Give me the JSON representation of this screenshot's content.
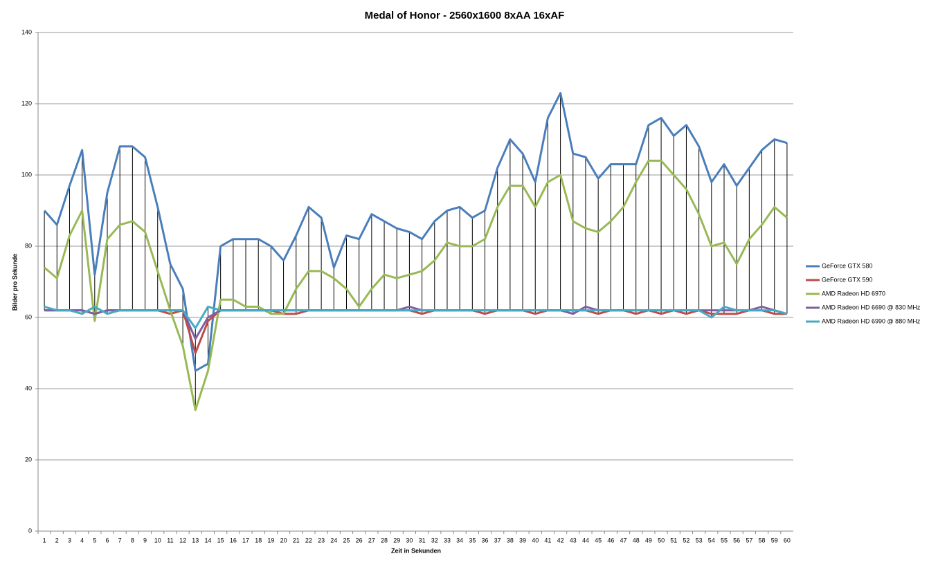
{
  "chart_data": {
    "type": "line",
    "title": "Medal of Honor - 2560x1600 8xAA 16xAF",
    "x_label": "Zeit in Sekunden",
    "y_label": "Bilder pro Sekunde",
    "categories": [
      "1",
      "2",
      "3",
      "4",
      "5",
      "6",
      "7",
      "8",
      "9",
      "10",
      "11",
      "12",
      "13",
      "14",
      "15",
      "16",
      "17",
      "18",
      "19",
      "20",
      "21",
      "22",
      "23",
      "24",
      "25",
      "26",
      "27",
      "28",
      "29",
      "30",
      "31",
      "32",
      "33",
      "34",
      "35",
      "36",
      "37",
      "38",
      "39",
      "40",
      "41",
      "42",
      "43",
      "44",
      "45",
      "46",
      "47",
      "48",
      "49",
      "50",
      "51",
      "52",
      "53",
      "54",
      "55",
      "56",
      "57",
      "58",
      "59",
      "60"
    ],
    "ylim": [
      0,
      140
    ],
    "yticks": [
      0,
      20,
      40,
      60,
      80,
      100,
      120,
      140
    ],
    "grid": true,
    "drop_lines": true,
    "legend": "right",
    "series": [
      {
        "name": "GeForce GTX 580",
        "color": "#4a7ebb",
        "values": [
          90,
          86,
          97,
          107,
          72,
          95,
          108,
          108,
          105,
          91,
          75,
          68,
          45,
          47,
          80,
          82,
          82,
          82,
          80,
          76,
          83,
          91,
          88,
          74,
          83,
          82,
          89,
          87,
          85,
          84,
          82,
          87,
          90,
          91,
          88,
          90,
          102,
          110,
          106,
          98,
          116,
          123,
          106,
          105,
          99,
          103,
          103,
          103,
          114,
          116,
          111,
          114,
          108,
          98,
          103,
          97,
          102,
          107,
          110,
          109
        ]
      },
      {
        "name": "GeForce GTX 590",
        "color": "#be4b48",
        "values": [
          62,
          62,
          62,
          62,
          61,
          62,
          62,
          62,
          62,
          62,
          61,
          62,
          50,
          59,
          62,
          62,
          62,
          62,
          62,
          61,
          61,
          62,
          62,
          62,
          62,
          62,
          62,
          62,
          62,
          62,
          61,
          62,
          62,
          62,
          62,
          61,
          62,
          62,
          62,
          61,
          62,
          62,
          62,
          62,
          61,
          62,
          62,
          61,
          62,
          61,
          62,
          61,
          62,
          61,
          61,
          61,
          62,
          62,
          61,
          61
        ]
      },
      {
        "name": "AMD Radeon HD 6970",
        "color": "#98b954",
        "values": [
          74,
          71,
          83,
          90,
          59,
          82,
          86,
          87,
          84,
          73,
          62,
          52,
          34,
          45,
          65,
          65,
          63,
          63,
          61,
          61,
          68,
          73,
          73,
          71,
          68,
          63,
          68,
          72,
          71,
          72,
          73,
          76,
          81,
          80,
          80,
          82,
          91,
          97,
          97,
          91,
          98,
          100,
          87,
          85,
          84,
          87,
          91,
          98,
          104,
          104,
          100,
          96,
          89,
          80,
          81,
          75,
          82,
          86,
          91,
          88
        ]
      },
      {
        "name": "AMD Radeon HD 6690 @ 830 MHz",
        "color": "#7d5fa0",
        "values": [
          62,
          62,
          62,
          62,
          61,
          62,
          62,
          62,
          62,
          62,
          62,
          62,
          54,
          60,
          62,
          62,
          62,
          62,
          62,
          62,
          62,
          62,
          62,
          62,
          62,
          62,
          62,
          62,
          62,
          63,
          62,
          62,
          62,
          62,
          62,
          62,
          62,
          62,
          62,
          62,
          62,
          62,
          61,
          63,
          62,
          62,
          62,
          62,
          62,
          62,
          62,
          62,
          62,
          62,
          62,
          62,
          62,
          63,
          62,
          61
        ]
      },
      {
        "name": "AMD Radeon HD 6990 @ 880 MHz",
        "color": "#46aac5",
        "values": [
          63,
          62,
          62,
          61,
          63,
          61,
          62,
          62,
          62,
          62,
          62,
          62,
          57,
          63,
          62,
          62,
          62,
          62,
          62,
          62,
          62,
          62,
          62,
          62,
          62,
          62,
          62,
          62,
          62,
          62,
          62,
          62,
          62,
          62,
          62,
          62,
          62,
          62,
          62,
          62,
          62,
          62,
          62,
          62,
          62,
          62,
          62,
          62,
          62,
          62,
          62,
          62,
          62,
          60,
          63,
          62,
          62,
          62,
          62,
          61
        ]
      }
    ]
  }
}
